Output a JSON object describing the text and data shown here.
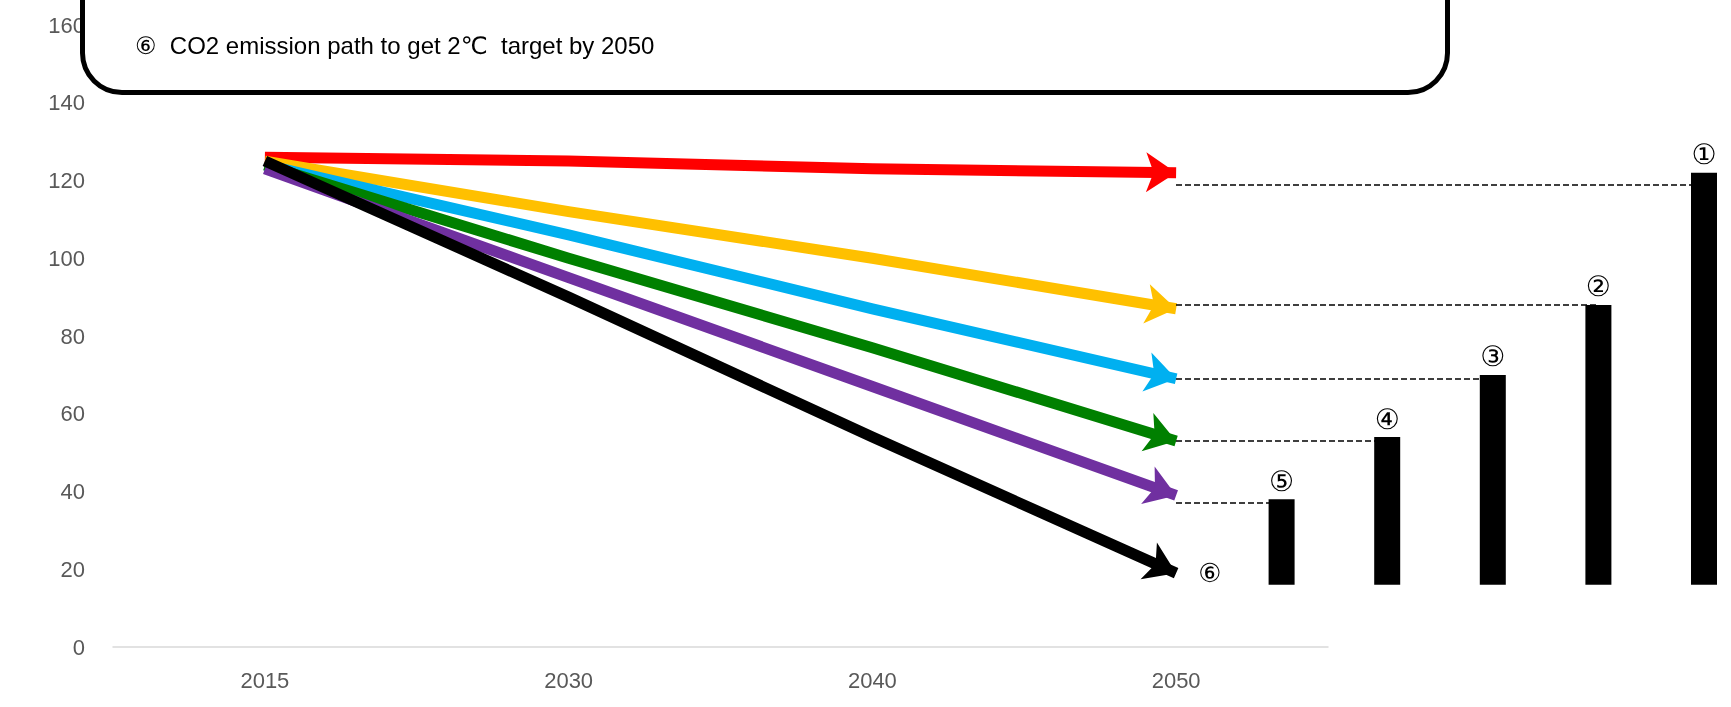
{
  "chart_data": [
    {
      "type": "line",
      "annotations": [
        "⑥  CO2 emission path to get 2℃  target by 2050"
      ],
      "categories": [
        "2015",
        "2030",
        "2040",
        "2050"
      ],
      "ylim": [
        0,
        160
      ],
      "yticks": [
        0,
        20,
        40,
        60,
        80,
        100,
        120,
        140,
        160
      ],
      "grid": false,
      "line_style": "solid",
      "series": [
        {
          "color": "#ff0000",
          "values": [
            126,
            125,
            123,
            122
          ]
        },
        {
          "color": "#ffc000",
          "values": [
            125,
            112,
            100,
            87
          ]
        },
        {
          "color": "#00b0f0",
          "values": [
            124,
            106,
            87,
            69
          ]
        },
        {
          "color": "#008000",
          "values": [
            124,
            100,
            77,
            53
          ]
        },
        {
          "color": "#7030a0",
          "values": [
            123,
            95,
            67,
            39
          ]
        },
        {
          "name": "⑥",
          "color": "#000000",
          "values": [
            125,
            90,
            54,
            19
          ]
        }
      ]
    },
    {
      "type": "bar",
      "categories": [
        null,
        null,
        null,
        null,
        null
      ],
      "ylim": [
        0,
        160
      ],
      "yticks": [
        0,
        20,
        40,
        60,
        80,
        100,
        120,
        140,
        160
      ],
      "tick_labels": false,
      "series": [
        {
          "color": "#000000",
          "base": [
            16,
            16,
            16,
            16,
            16
          ],
          "values": [
            22,
            38,
            54,
            72,
            106
          ],
          "value_labels": [
            "⑤",
            "④",
            "③",
            "②",
            "①"
          ]
        }
      ],
      "ref_lines": [
        {
          "axis": "y",
          "value": 37,
          "line_style": "dashed",
          "color": "#000000"
        },
        {
          "axis": "y",
          "value": 53,
          "line_style": "dashed",
          "color": "#000000"
        },
        {
          "axis": "y",
          "value": 69,
          "line_style": "dashed",
          "color": "#000000"
        },
        {
          "axis": "y",
          "value": 88,
          "line_style": "dashed",
          "color": "#000000"
        },
        {
          "axis": "y",
          "value": 119,
          "line_style": "dashed",
          "color": "#000000"
        }
      ]
    }
  ]
}
